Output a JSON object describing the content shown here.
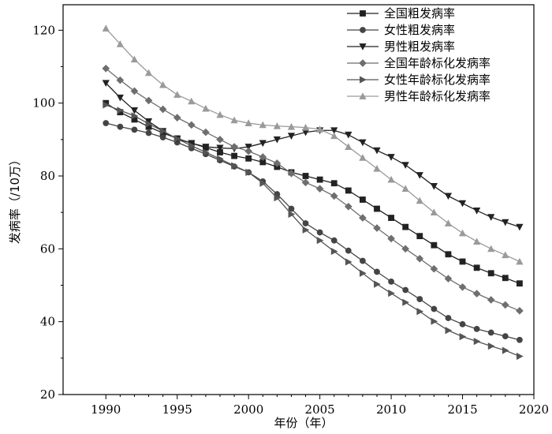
{
  "chart_data": {
    "type": "line",
    "title": "",
    "xlabel": "年份（年）",
    "ylabel": "发病率（/10万）",
    "xlim": [
      1987,
      2020
    ],
    "ylim": [
      20,
      127
    ],
    "xticks": [
      1990,
      1995,
      2000,
      2005,
      2010,
      2015,
      2020
    ],
    "yticks": [
      20,
      40,
      60,
      80,
      100,
      120
    ],
    "grid": false,
    "legend_position": "top-right",
    "x": [
      1990,
      1991,
      1992,
      1993,
      1994,
      1995,
      1996,
      1997,
      1998,
      1999,
      2000,
      2001,
      2002,
      2003,
      2004,
      2005,
      2006,
      2007,
      2008,
      2009,
      2010,
      2011,
      2012,
      2013,
      2014,
      2015,
      2016,
      2017,
      2018,
      2019
    ],
    "series": [
      {
        "name": "全国粗发病率",
        "marker": "square",
        "color": "#222222",
        "values": [
          100.0,
          97.5,
          95.5,
          93.5,
          91.8,
          90.3,
          89.0,
          87.8,
          86.5,
          85.5,
          84.8,
          83.8,
          82.5,
          81.0,
          80.0,
          79.0,
          78.0,
          76.0,
          73.5,
          71.0,
          68.5,
          66.0,
          63.5,
          61.0,
          58.5,
          56.5,
          54.8,
          53.3,
          52.0,
          50.5
        ]
      },
      {
        "name": "女性粗发病率",
        "marker": "circle",
        "color": "#444444",
        "values": [
          94.5,
          93.5,
          92.7,
          91.8,
          90.6,
          89.2,
          87.6,
          86.0,
          84.3,
          82.6,
          81.0,
          78.5,
          75.0,
          71.0,
          67.0,
          64.5,
          62.3,
          59.5,
          56.7,
          53.7,
          51.0,
          48.7,
          46.2,
          43.5,
          41.0,
          39.3,
          38.0,
          37.0,
          36.0,
          35.0
        ]
      },
      {
        "name": "男性粗发病率",
        "marker": "triangle-down",
        "color": "#222222",
        "values": [
          105.5,
          101.5,
          98.0,
          95.0,
          92.3,
          90.2,
          89.0,
          88.0,
          87.7,
          87.5,
          88.0,
          89.0,
          90.0,
          91.0,
          92.0,
          92.5,
          92.5,
          91.3,
          89.2,
          87.0,
          85.2,
          83.0,
          80.2,
          77.2,
          74.5,
          72.5,
          70.5,
          68.7,
          67.3,
          66.0
        ]
      },
      {
        "name": "全国年龄标化发病率",
        "marker": "diamond",
        "color": "#6e6e6e",
        "values": [
          109.5,
          106.3,
          103.3,
          100.7,
          98.3,
          96.0,
          94.0,
          92.0,
          90.0,
          88.0,
          86.8,
          85.2,
          83.5,
          80.7,
          78.2,
          76.5,
          74.5,
          71.6,
          68.5,
          65.7,
          62.8,
          60.0,
          57.3,
          54.5,
          51.8,
          49.5,
          47.7,
          46.0,
          44.6,
          43.0
        ]
      },
      {
        "name": "女性年龄标化发病率",
        "marker": "triangle-right",
        "color": "#555555",
        "values": [
          99.5,
          98.0,
          96.5,
          94.3,
          92.3,
          90.2,
          88.3,
          86.5,
          84.7,
          82.8,
          81.0,
          78.0,
          74.0,
          69.5,
          65.2,
          62.3,
          59.3,
          56.4,
          53.3,
          50.3,
          47.8,
          45.3,
          42.8,
          40.1,
          37.6,
          35.9,
          34.6,
          33.3,
          32.1,
          30.5
        ]
      },
      {
        "name": "男性年龄标化发病率",
        "marker": "triangle-up",
        "color": "#9a9a9a",
        "values": [
          120.5,
          116.2,
          112.0,
          108.3,
          105.0,
          102.3,
          100.5,
          98.5,
          96.8,
          95.3,
          94.5,
          94.0,
          93.7,
          93.5,
          93.3,
          92.8,
          91.0,
          88.0,
          85.0,
          82.0,
          79.0,
          76.5,
          73.2,
          70.0,
          67.0,
          64.3,
          62.0,
          60.0,
          58.3,
          56.5
        ]
      }
    ]
  }
}
